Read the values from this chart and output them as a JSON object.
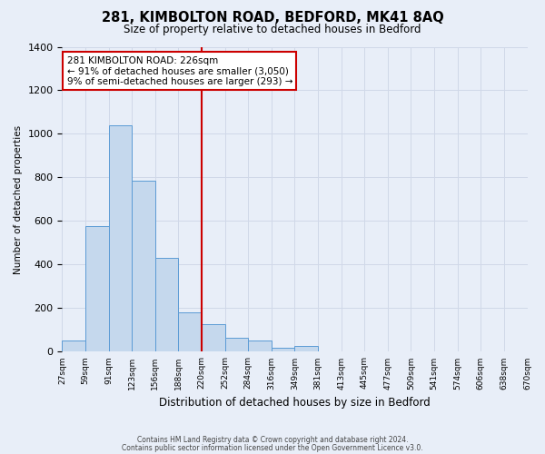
{
  "title": "281, KIMBOLTON ROAD, BEDFORD, MK41 8AQ",
  "subtitle": "Size of property relative to detached houses in Bedford",
  "xlabel": "Distribution of detached houses by size in Bedford",
  "ylabel": "Number of detached properties",
  "bins": [
    "27sqm",
    "59sqm",
    "91sqm",
    "123sqm",
    "156sqm",
    "188sqm",
    "220sqm",
    "252sqm",
    "284sqm",
    "316sqm",
    "349sqm",
    "381sqm",
    "413sqm",
    "445sqm",
    "477sqm",
    "509sqm",
    "541sqm",
    "574sqm",
    "606sqm",
    "638sqm",
    "670sqm"
  ],
  "values": [
    50,
    575,
    1040,
    785,
    430,
    180,
    125,
    65,
    50,
    20,
    25,
    0,
    0,
    0,
    0,
    0,
    0,
    0,
    0,
    0
  ],
  "bar_color": "#c5d8ed",
  "bar_edge_color": "#5b9bd5",
  "vline_x_index": 6,
  "vline_color": "#cc0000",
  "annotation_title": "281 KIMBOLTON ROAD: 226sqm",
  "annotation_line1": "← 91% of detached houses are smaller (3,050)",
  "annotation_line2": "9% of semi-detached houses are larger (293) →",
  "annotation_box_color": "#ffffff",
  "annotation_border_color": "#cc0000",
  "ylim": [
    0,
    1400
  ],
  "yticks": [
    0,
    200,
    400,
    600,
    800,
    1000,
    1200,
    1400
  ],
  "grid_color": "#d0d8e8",
  "background_color": "#e8eef8",
  "footer_line1": "Contains HM Land Registry data © Crown copyright and database right 2024.",
  "footer_line2": "Contains public sector information licensed under the Open Government Licence v3.0."
}
